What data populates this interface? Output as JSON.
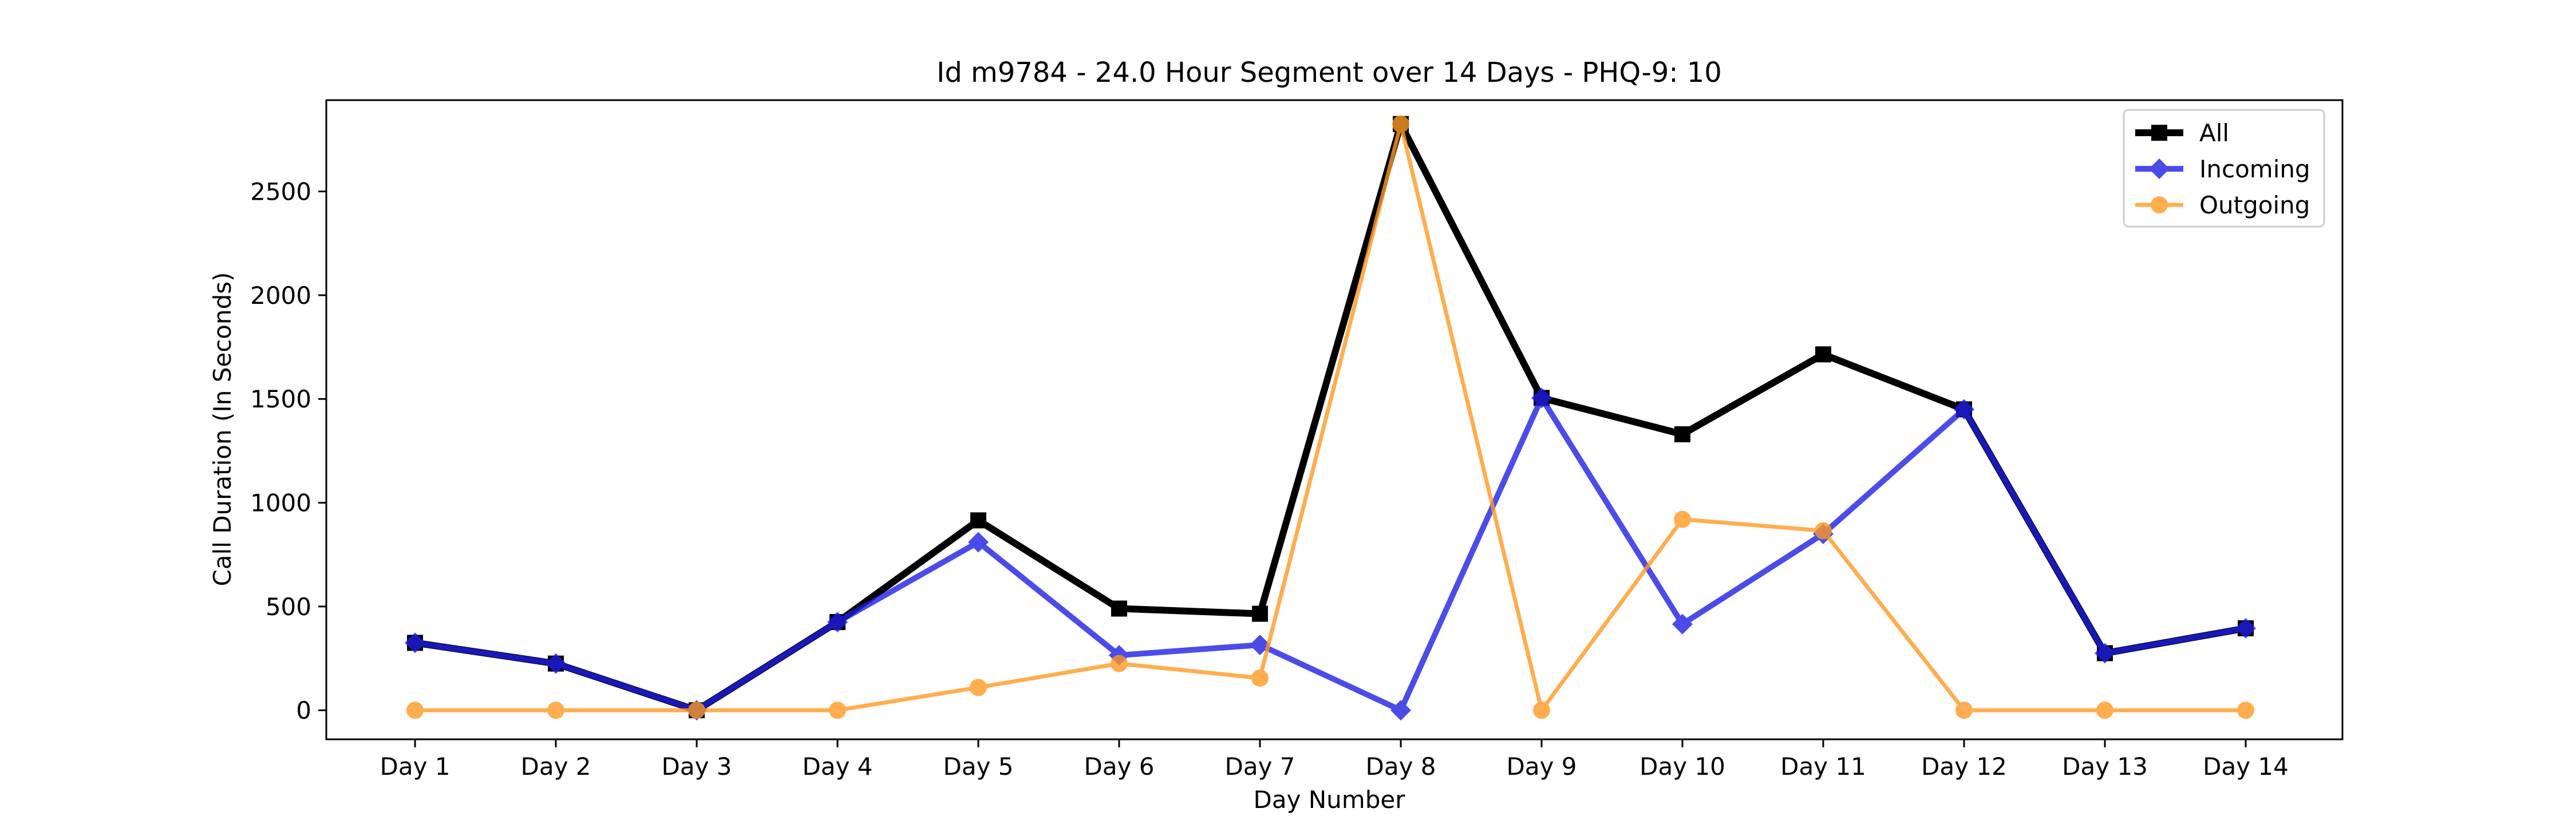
{
  "chart_data": {
    "type": "line",
    "title": "Id m9784 - 24.0 Hour Segment over 14 Days - PHQ-9: 10",
    "xlabel": "Day Number",
    "ylabel": "Call Duration (In Seconds)",
    "categories": [
      "Day 1",
      "Day 2",
      "Day 3",
      "Day 4",
      "Day 5",
      "Day 6",
      "Day 7",
      "Day 8",
      "Day 9",
      "Day 10",
      "Day 11",
      "Day 12",
      "Day 13",
      "Day 14"
    ],
    "ylim": [
      -140,
      2940
    ],
    "yticks": [
      0,
      500,
      1000,
      1500,
      2000,
      2500
    ],
    "grid": false,
    "legend_position": "top-right",
    "series": [
      {
        "name": "All",
        "color": "#000000",
        "marker": "square",
        "values": [
          325,
          225,
          0,
          425,
          915,
          490,
          465,
          2825,
          1505,
          1330,
          1715,
          1450,
          275,
          395
        ]
      },
      {
        "name": "Incoming",
        "color": "#1f1fe6",
        "marker": "diamond",
        "values": [
          325,
          225,
          0,
          425,
          810,
          265,
          315,
          0,
          1505,
          415,
          850,
          1450,
          275,
          395
        ]
      },
      {
        "name": "Outgoing",
        "color": "#ff9922",
        "marker": "circle",
        "values": [
          0,
          0,
          0,
          0,
          110,
          225,
          155,
          2825,
          0,
          920,
          865,
          0,
          0,
          0
        ]
      }
    ]
  }
}
